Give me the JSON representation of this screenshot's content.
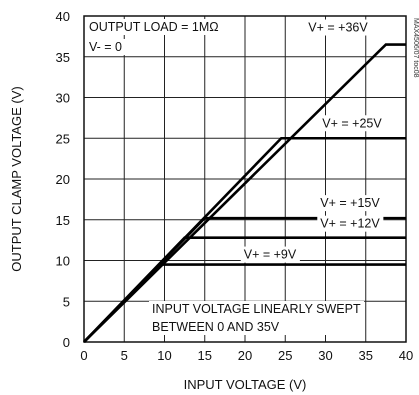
{
  "chart_data": {
    "type": "line",
    "xlabel": "INPUT VOLTAGE (V)",
    "ylabel": "OUTPUT CLAMP VOLTAGE (V)",
    "xlim": [
      0,
      40
    ],
    "ylim": [
      0,
      40
    ],
    "xticks": [
      0,
      5,
      10,
      15,
      20,
      25,
      30,
      35,
      40
    ],
    "yticks": [
      0,
      5,
      10,
      15,
      20,
      25,
      30,
      35,
      40
    ],
    "grid": true,
    "series": [
      {
        "name": "V+ = +36V",
        "x": [
          0,
          37.5,
          40
        ],
        "y": [
          0,
          36.5,
          36.5
        ]
      },
      {
        "name": "V+ = +25V",
        "x": [
          0,
          24.5,
          40
        ],
        "y": [
          0,
          25,
          25
        ]
      },
      {
        "name": "V+ = +15V",
        "x": [
          0,
          15,
          40
        ],
        "y": [
          0,
          15.2,
          15.2
        ]
      },
      {
        "name": "V+ = +12V",
        "x": [
          0,
          12.5,
          40
        ],
        "y": [
          0,
          12.8,
          12.8
        ]
      },
      {
        "name": "V+ = +9V",
        "x": [
          0,
          9.5,
          40
        ],
        "y": [
          0,
          9.5,
          9.5
        ]
      }
    ],
    "annotations": {
      "load": "OUTPUT LOAD = 1MΩ",
      "vminus": "V- = 0",
      "sweep_line1": "INPUT VOLTAGE LINEARLY SWEPT",
      "sweep_line2": "BETWEEN 0 AND 35V",
      "side_code": "MAX4506/07 toc08"
    }
  }
}
